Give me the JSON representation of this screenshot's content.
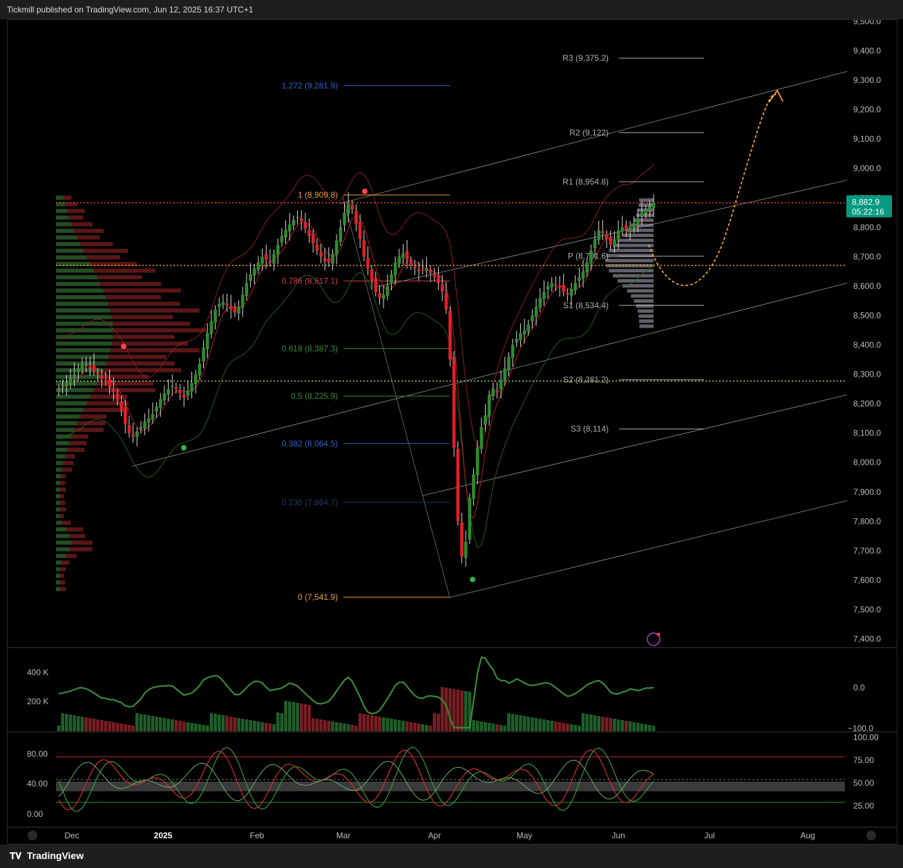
{
  "header": {
    "publisher": "Tickmill published on TradingView.com, Jun 12, 2025 16:37 UTC+1"
  },
  "footer": {
    "brand": "TradingView",
    "brand_icon": "tradingview-logo-icon"
  },
  "price_tag": {
    "price": "8,882.9",
    "countdown": "05:22:16",
    "color": "#089981"
  },
  "colors": {
    "up": "#2e8b2e",
    "down": "#e0202a",
    "fib_orange": "#f0a030",
    "fib_blue": "#3060c8",
    "fib_red": "#d04040",
    "fib_green": "#3a8a3a",
    "pivot": "#b0b0b0"
  },
  "chart_data": [
    {
      "type": "candlestick",
      "title": "",
      "x_ticks": [
        "Dec",
        "2025",
        "Feb",
        "Mar",
        "Apr",
        "May",
        "Jun",
        "Jul",
        "Aug"
      ],
      "y_ticks": [
        "9,500.0",
        "9,400.0",
        "9,300.0",
        "9,200.0",
        "9,100.0",
        "9,000.0",
        "8,900.0",
        "8,800.0",
        "8,700.0",
        "8,600.0",
        "8,500.0",
        "8,400.0",
        "8,300.0",
        "8,200.0",
        "8,100.0",
        "8,000.0",
        "7,900.0",
        "7,800.0",
        "7,700.0",
        "7,600.0",
        "7,500.0",
        "7,400.0"
      ],
      "ylim": [
        7380,
        9500
      ],
      "fib_levels": [
        {
          "label": "1.272 (9,281.9)",
          "value": 9281.9,
          "color": "#3060c8"
        },
        {
          "label": "1 (8,909.8)",
          "value": 8909.8,
          "color": "#f0a030"
        },
        {
          "label": "0.786 (8,617.1)",
          "value": 8617.1,
          "color": "#d04040"
        },
        {
          "label": "0.618 (8,387.3)",
          "value": 8387.3,
          "color": "#3a8a3a"
        },
        {
          "label": "0.5 (8,225.9)",
          "value": 8225.9,
          "color": "#3a8a3a"
        },
        {
          "label": "0.382 (8,064.5)",
          "value": 8064.5,
          "color": "#3060c8"
        },
        {
          "label": "0.236 (7,864.7)",
          "value": 7864.7,
          "color": "#1c3a6a"
        },
        {
          "label": "0 (7,541.9)",
          "value": 7541.9,
          "color": "#f0a030"
        }
      ],
      "pivot_levels": [
        {
          "label": "R3 (9,375.2)",
          "value": 9375.2
        },
        {
          "label": "R2 (9,122)",
          "value": 9122
        },
        {
          "label": "R1 (8,954.8)",
          "value": 8954.8
        },
        {
          "label": "P (8,701.6)",
          "value": 8701.6
        },
        {
          "label": "S1 (8,534.4)",
          "value": 8534.4
        },
        {
          "label": "S2 (8,281.2)",
          "value": 8281.2
        },
        {
          "label": "S3 (8,114)",
          "value": 8114
        }
      ],
      "horizontal_lines": [
        {
          "value": 8882.9,
          "color": "#e8502a",
          "style": "dotted"
        },
        {
          "value": 8670,
          "color": "#f0b000",
          "style": "dotted"
        },
        {
          "value": 8277,
          "color": "#a8d870",
          "style": "dotted"
        }
      ],
      "close": [
        8250,
        8262,
        8270,
        8285,
        8300,
        8320,
        8335,
        8330,
        8325,
        8310,
        8300,
        8285,
        8275,
        8255,
        8240,
        8210,
        8180,
        8130,
        8100,
        8090,
        8105,
        8120,
        8140,
        8150,
        8165,
        8190,
        8215,
        8235,
        8250,
        8260,
        8250,
        8235,
        8220,
        8245,
        8270,
        8300,
        8335,
        8390,
        8440,
        8480,
        8520,
        8540,
        8545,
        8535,
        8520,
        8510,
        8530,
        8570,
        8610,
        8640,
        8660,
        8680,
        8700,
        8690,
        8680,
        8710,
        8740,
        8770,
        8790,
        8810,
        8825,
        8835,
        8820,
        8795,
        8770,
        8745,
        8720,
        8700,
        8685,
        8680,
        8710,
        8755,
        8800,
        8850,
        8880,
        8860,
        8810,
        8760,
        8700,
        8660,
        8620,
        8580,
        8560,
        8570,
        8600,
        8640,
        8680,
        8700,
        8710,
        8690,
        8670,
        8660,
        8650,
        8655,
        8660,
        8645,
        8630,
        8610,
        8580,
        8520,
        8350,
        8050,
        7800,
        7680,
        7730,
        7880,
        7960,
        8050,
        8120,
        8160,
        8230,
        8250,
        8240,
        8280,
        8320,
        8360,
        8400,
        8420,
        8440,
        8450,
        8470,
        8500,
        8530,
        8560,
        8580,
        8600,
        8610,
        8605,
        8595,
        8580,
        8570,
        8590,
        8610,
        8630,
        8650,
        8680,
        8720,
        8760,
        8790,
        8780,
        8760,
        8740,
        8760,
        8790,
        8800,
        8790,
        8800,
        8810,
        8830,
        8850,
        8860,
        8870,
        8885
      ],
      "volume_profile": "left-side and right-side horizontal volume histograms",
      "oscillator_ticks": [
        "400 K",
        "200 K",
        "0.0",
        "−100.0"
      ],
      "stochastic_ticks": [
        "80.00",
        "40.00",
        "0.00",
        "100.00",
        "75.00",
        "50.00",
        "25.00"
      ]
    }
  ]
}
